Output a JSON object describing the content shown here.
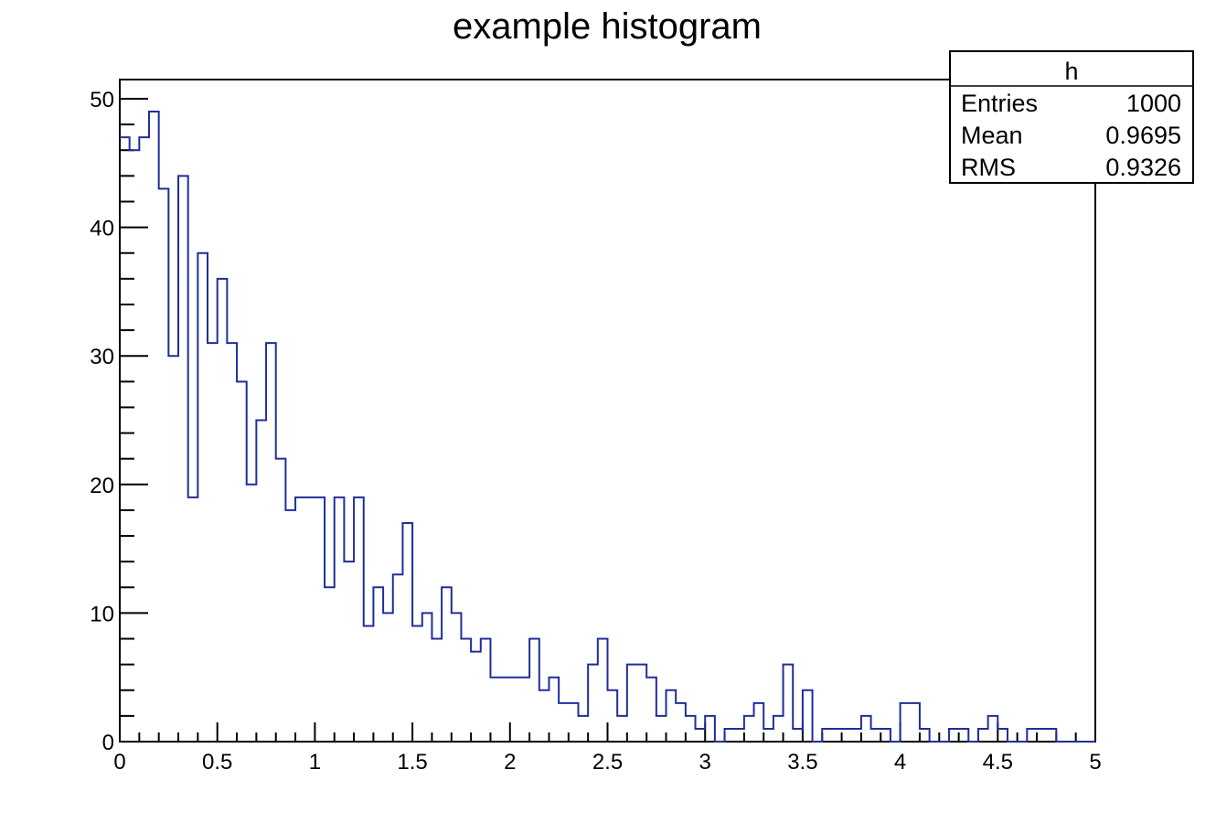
{
  "chart_data": {
    "type": "histogram",
    "title": "example histogram",
    "xlabel": "",
    "ylabel": "",
    "xlim": [
      0,
      5
    ],
    "ylim": [
      0,
      51.5
    ],
    "bin_width": 0.05,
    "x_ticks": [
      "0",
      "0.5",
      "1",
      "1.5",
      "2",
      "2.5",
      "3",
      "3.5",
      "4",
      "4.5",
      "5"
    ],
    "y_ticks": [
      "0",
      "10",
      "20",
      "30",
      "40",
      "50"
    ],
    "line_color": "#1f2e9a",
    "values": [
      47,
      46,
      47,
      49,
      43,
      30,
      44,
      19,
      38,
      31,
      36,
      31,
      28,
      20,
      25,
      31,
      22,
      18,
      19,
      19,
      19,
      12,
      19,
      14,
      19,
      9,
      12,
      10,
      13,
      17,
      9,
      10,
      8,
      12,
      10,
      8,
      7,
      8,
      5,
      5,
      5,
      5,
      8,
      4,
      5,
      3,
      3,
      2,
      6,
      8,
      4,
      2,
      6,
      6,
      5,
      2,
      4,
      3,
      2,
      1,
      2,
      0,
      1,
      1,
      2,
      3,
      1,
      2,
      6,
      1,
      4,
      0,
      1,
      1,
      1,
      1,
      2,
      1,
      1,
      0,
      3,
      3,
      1,
      0,
      0,
      1,
      1,
      0,
      1,
      2,
      1,
      0,
      0,
      1,
      1,
      1,
      0,
      0,
      0,
      0
    ],
    "stats_box": {
      "name": "h",
      "rows": [
        {
          "label": "Entries",
          "value": "1000"
        },
        {
          "label": "Mean",
          "value": "0.9695"
        },
        {
          "label": "RMS",
          "value": "0.9326"
        }
      ]
    }
  }
}
